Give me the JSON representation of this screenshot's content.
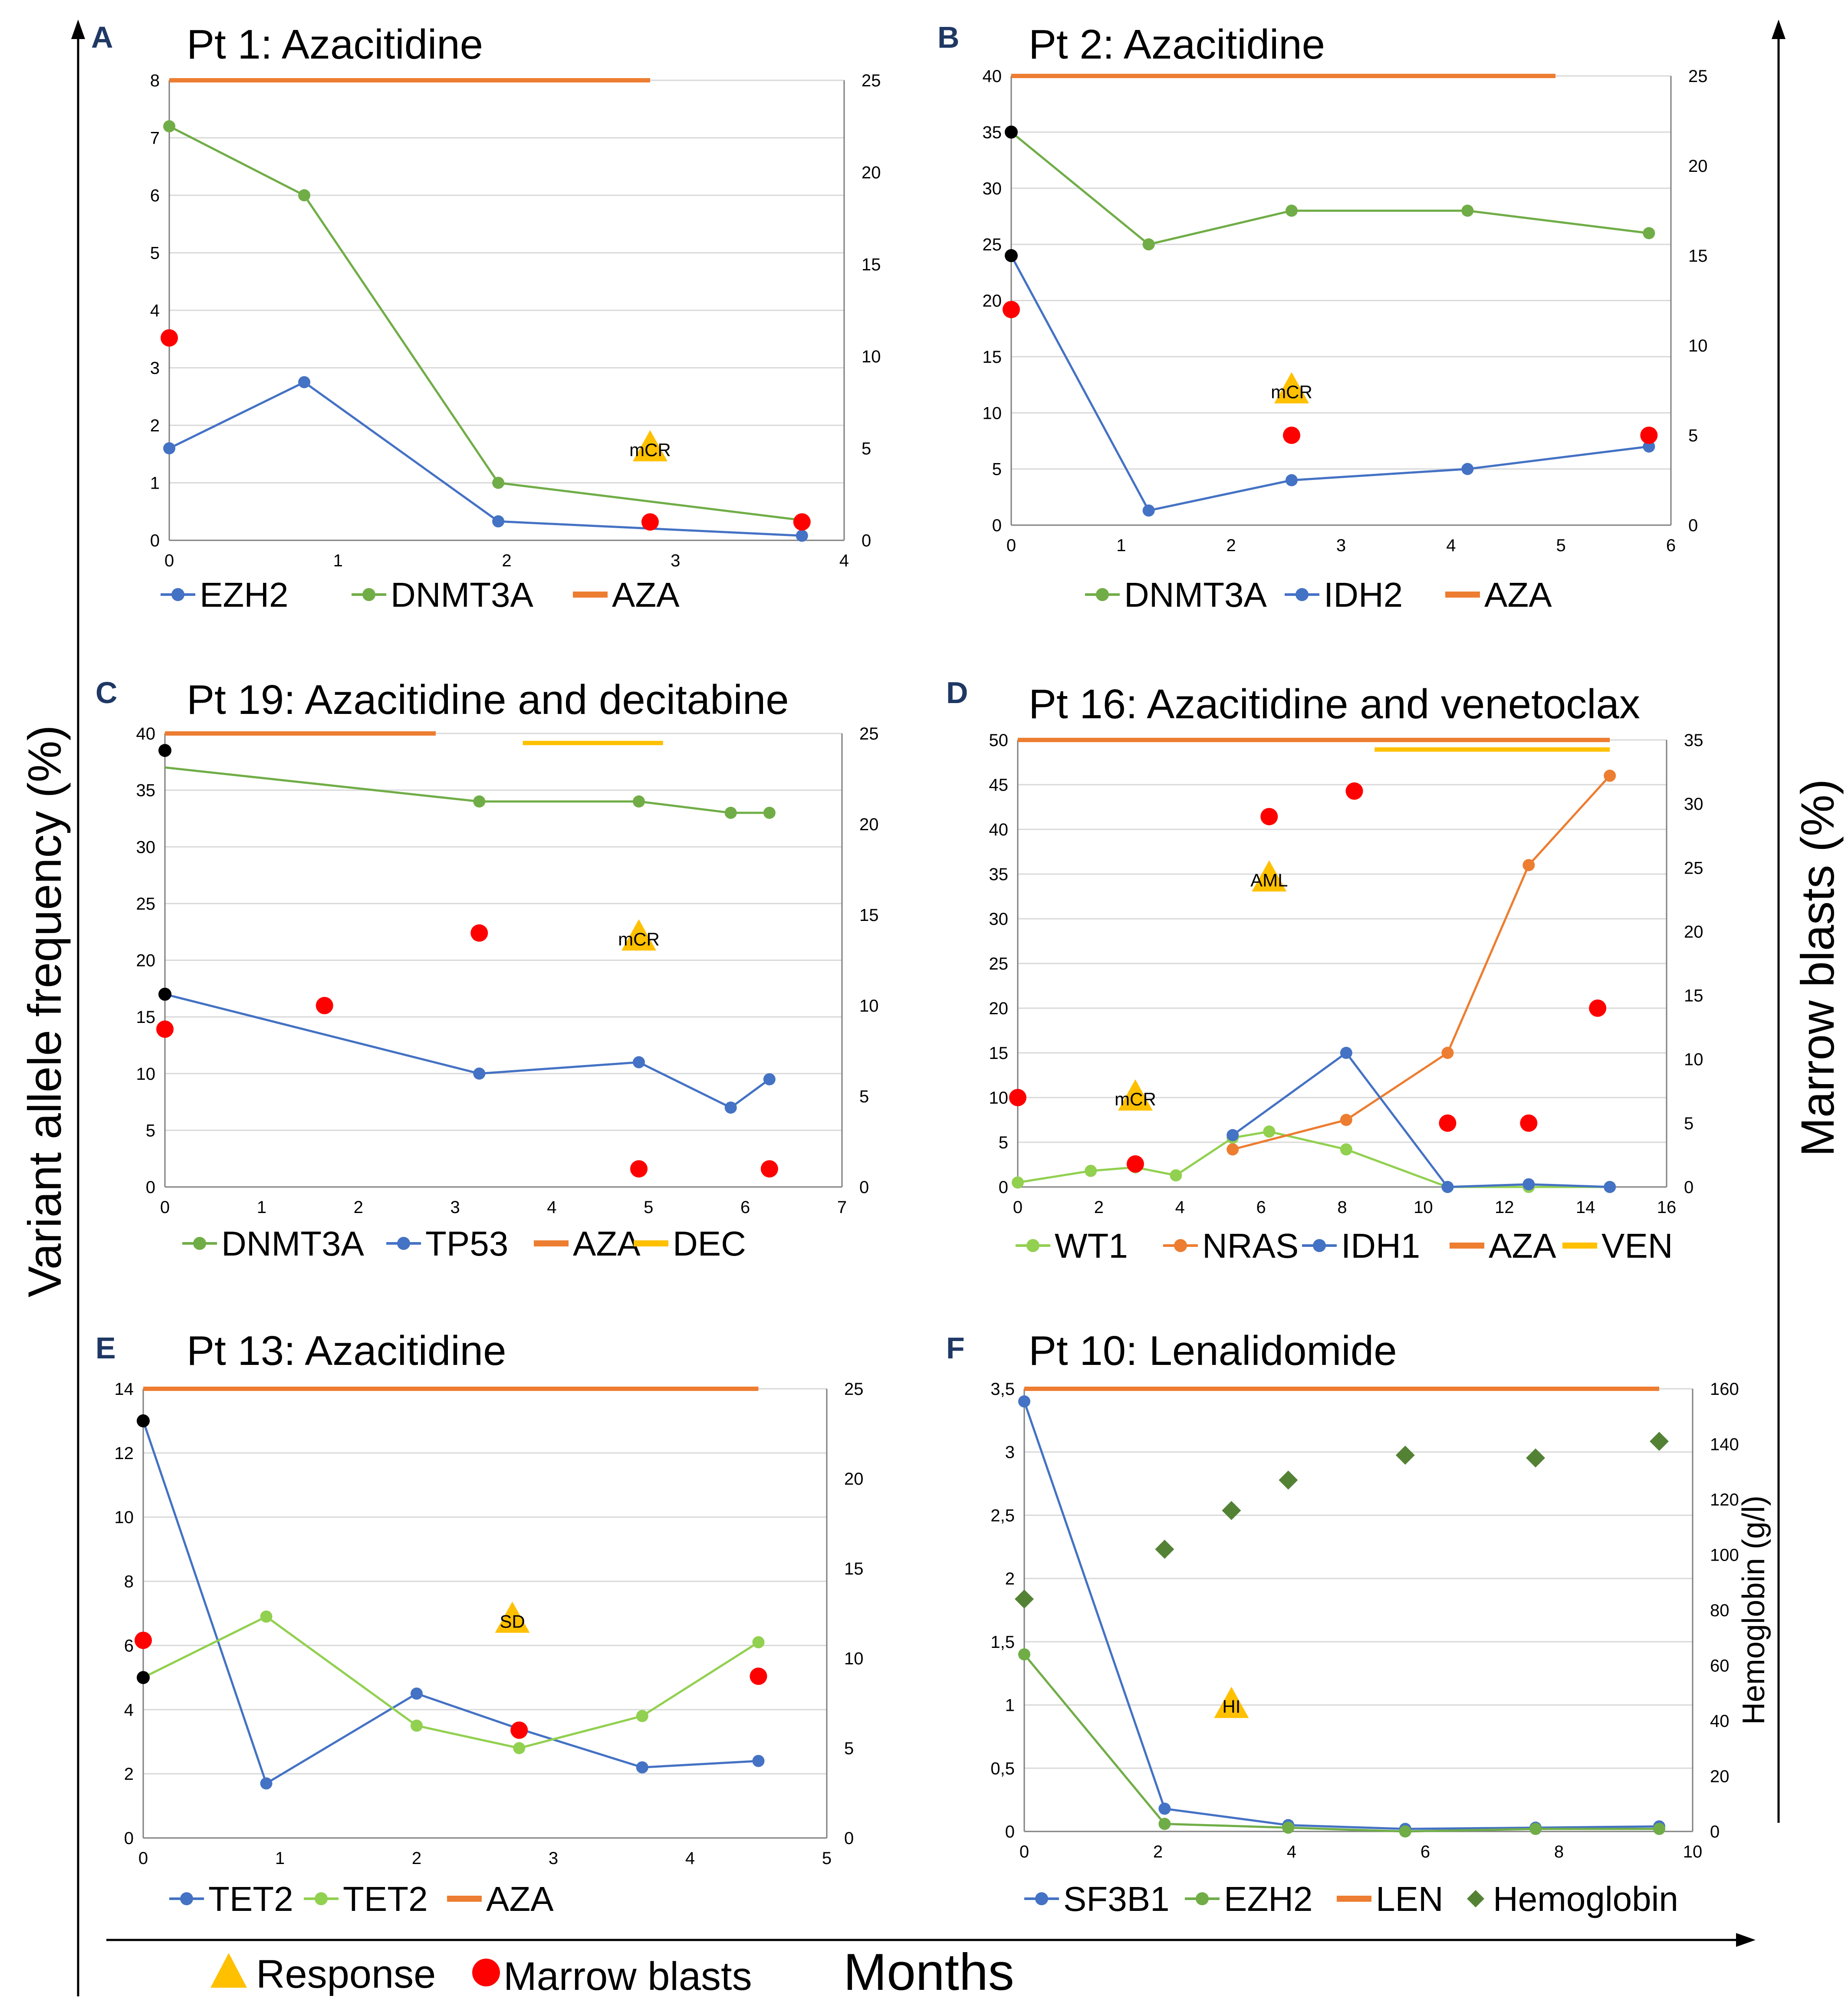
{
  "figure": {
    "left_axis_label": "Variant allele frequency (%)",
    "right_axis_label": "Marrow blasts (%)",
    "bottom_axis_label": "Months",
    "legend_response": "Response",
    "legend_blasts": "Marrow blasts",
    "colors": {
      "blue": "#4472c4",
      "green": "#70ad47",
      "lightgreen": "#92d050",
      "orange": "#ed7d31",
      "yellow": "#ffc000",
      "red": "#ff0000",
      "black": "#000000",
      "darkgreen": "#548235",
      "panel_letter": "#1f3864",
      "grid": "#d9d9d9",
      "axis": "#7f7f7f"
    }
  },
  "chart_data": [
    {
      "id": "A",
      "letter": "A",
      "type": "line",
      "title": "Pt 1: Azacitidine",
      "xlim": [
        0,
        4
      ],
      "xticks": [
        "0",
        "1",
        "2",
        "3",
        "4"
      ],
      "xtick_values": [
        0,
        1,
        2,
        3,
        4
      ],
      "ylim": [
        0,
        8
      ],
      "yticks": [
        "0",
        "1",
        "2",
        "3",
        "4",
        "5",
        "6",
        "7",
        "8"
      ],
      "ytick_values": [
        0,
        1,
        2,
        3,
        4,
        5,
        6,
        7,
        8
      ],
      "y2lim": [
        0,
        25
      ],
      "y2ticks": [
        "0",
        "5",
        "10",
        "15",
        "20",
        "25"
      ],
      "y2tick_values": [
        0,
        5,
        10,
        15,
        20,
        25
      ],
      "series": [
        {
          "name": "EZH2",
          "color": "blue",
          "x": [
            0,
            0.8,
            1.95,
            3.75
          ],
          "y": [
            1.6,
            2.75,
            0.33,
            0.08
          ]
        },
        {
          "name": "DNMT3A",
          "color": "green",
          "x": [
            0,
            0.8,
            1.95,
            3.75
          ],
          "y": [
            7.2,
            6.0,
            1.0,
            0.35
          ]
        }
      ],
      "treatments": [
        {
          "name": "AZA",
          "color": "orange",
          "x_start": 0,
          "x_end": 2.85
        }
      ],
      "blasts": [
        {
          "x": 0,
          "y": 11
        },
        {
          "x": 2.85,
          "y": 1
        },
        {
          "x": 3.75,
          "y": 1
        }
      ],
      "black_points": [],
      "responses": [
        {
          "label": "mCR",
          "x": 2.85,
          "y": 1.6
        }
      ],
      "legend": [
        {
          "label": "EZH2",
          "kind": "line-marker",
          "color": "blue"
        },
        {
          "label": "DNMT3A",
          "kind": "line-marker",
          "color": "green"
        },
        {
          "label": "AZA",
          "kind": "thick-line",
          "color": "orange"
        }
      ]
    },
    {
      "id": "B",
      "letter": "B",
      "type": "line",
      "title": "Pt 2: Azacitidine",
      "xlim": [
        0,
        6
      ],
      "xticks": [
        "0",
        "1",
        "2",
        "3",
        "4",
        "5",
        "6"
      ],
      "xtick_values": [
        0,
        1,
        2,
        3,
        4,
        5,
        6
      ],
      "ylim": [
        0,
        40
      ],
      "yticks": [
        "0",
        "5",
        "10",
        "15",
        "20",
        "25",
        "30",
        "35",
        "40"
      ],
      "ytick_values": [
        0,
        5,
        10,
        15,
        20,
        25,
        30,
        35,
        40
      ],
      "y2lim": [
        0,
        25
      ],
      "y2ticks": [
        "0",
        "5",
        "10",
        "15",
        "20",
        "25"
      ],
      "y2tick_values": [
        0,
        5,
        10,
        15,
        20,
        25
      ],
      "series": [
        {
          "name": "DNMT3A",
          "color": "green",
          "x": [
            0,
            1.25,
            2.55,
            4.15,
            5.8
          ],
          "y": [
            35,
            25,
            28,
            28,
            26
          ]
        },
        {
          "name": "IDH2",
          "color": "blue",
          "x": [
            0,
            1.25,
            2.55,
            4.15,
            5.8
          ],
          "y": [
            24,
            1.3,
            4.0,
            5.0,
            7.0
          ]
        }
      ],
      "treatments": [
        {
          "name": "AZA",
          "color": "orange",
          "x_start": 0,
          "x_end": 4.95
        }
      ],
      "blasts": [
        {
          "x": 0,
          "y": 12
        },
        {
          "x": 2.55,
          "y": 5
        },
        {
          "x": 5.8,
          "y": 5
        }
      ],
      "black_points": [
        {
          "x": 0,
          "y": 35
        },
        {
          "x": 0,
          "y": 24
        }
      ],
      "responses": [
        {
          "label": "mCR",
          "x": 2.55,
          "y": 12
        }
      ],
      "legend": [
        {
          "label": "DNMT3A",
          "kind": "line-marker",
          "color": "green"
        },
        {
          "label": "IDH2",
          "kind": "line-marker",
          "color": "blue"
        },
        {
          "label": "AZA",
          "kind": "thick-line",
          "color": "orange"
        }
      ]
    },
    {
      "id": "C",
      "letter": "C",
      "type": "line",
      "title": "Pt 19: Azacitidine and decitabine",
      "xlim": [
        0,
        7
      ],
      "xticks": [
        "0",
        "1",
        "2",
        "3",
        "4",
        "5",
        "6",
        "7"
      ],
      "xtick_values": [
        0,
        1,
        2,
        3,
        4,
        5,
        6,
        7
      ],
      "ylim": [
        0,
        40
      ],
      "yticks": [
        "0",
        "5",
        "10",
        "15",
        "20",
        "25",
        "30",
        "35",
        "40"
      ],
      "ytick_values": [
        0,
        5,
        10,
        15,
        20,
        25,
        30,
        35,
        40
      ],
      "y2lim": [
        0,
        25
      ],
      "y2ticks": [
        "0",
        "5",
        "10",
        "15",
        "20",
        "25"
      ],
      "y2tick_values": [
        0,
        5,
        10,
        15,
        20,
        25
      ],
      "series": [
        {
          "name": "DNMT3A",
          "color": "green",
          "x": [
            0,
            3.25,
            4.9,
            5.85,
            6.25
          ],
          "y": [
            37,
            34,
            34,
            33,
            33
          ],
          "first_marker": false
        },
        {
          "name": "TP53",
          "color": "blue",
          "x": [
            0,
            3.25,
            4.9,
            5.85,
            6.25
          ],
          "y": [
            17,
            10,
            11,
            7,
            9.5
          ],
          "first_marker": false
        }
      ],
      "treatments": [
        {
          "name": "AZA",
          "color": "orange",
          "x_start": 0,
          "x_end": 2.8
        },
        {
          "name": "DEC",
          "color": "yellow",
          "x_start": 3.7,
          "x_end": 5.15
        }
      ],
      "blasts": [
        {
          "x": 0,
          "y": 8.7
        },
        {
          "x": 1.65,
          "y": 10
        },
        {
          "x": 3.25,
          "y": 14
        },
        {
          "x": 4.9,
          "y": 1
        },
        {
          "x": 6.25,
          "y": 1
        }
      ],
      "black_points": [
        {
          "x": 0,
          "y": 38.5
        },
        {
          "x": 0,
          "y": 17
        }
      ],
      "responses": [
        {
          "label": "mCR",
          "x": 4.9,
          "y": 22
        }
      ],
      "legend": [
        {
          "label": "DNMT3A",
          "kind": "line-marker",
          "color": "green"
        },
        {
          "label": "TP53",
          "kind": "line-marker",
          "color": "blue"
        },
        {
          "label": "AZA",
          "kind": "thick-line",
          "color": "orange"
        },
        {
          "label": "DEC",
          "kind": "thick-line",
          "color": "yellow"
        }
      ]
    },
    {
      "id": "D",
      "letter": "D",
      "type": "line",
      "title": "Pt 16: Azacitidine and venetoclax",
      "xlim": [
        0,
        16
      ],
      "xticks": [
        "0",
        "2",
        "4",
        "6",
        "8",
        "10",
        "12",
        "14",
        "16"
      ],
      "xtick_values": [
        0,
        2,
        4,
        6,
        8,
        10,
        12,
        14,
        16
      ],
      "ylim": [
        0,
        50
      ],
      "yticks": [
        "0",
        "5",
        "10",
        "15",
        "20",
        "25",
        "30",
        "35",
        "40",
        "45",
        "50"
      ],
      "ytick_values": [
        0,
        5,
        10,
        15,
        20,
        25,
        30,
        35,
        40,
        45,
        50
      ],
      "y2lim": [
        0,
        35
      ],
      "y2ticks": [
        "0",
        "5",
        "10",
        "15",
        "20",
        "25",
        "30",
        "35"
      ],
      "y2tick_values": [
        0,
        5,
        10,
        15,
        20,
        25,
        30,
        35
      ],
      "series": [
        {
          "name": "WT1",
          "color": "lightgreen",
          "x": [
            0,
            1.8,
            2.9,
            3.9,
            5.3,
            6.2,
            8.1,
            10.6,
            12.6,
            14.6
          ],
          "y": [
            0.5,
            1.8,
            2.2,
            1.3,
            5.5,
            6.2,
            4.2,
            0,
            0,
            0
          ]
        },
        {
          "name": "NRAS",
          "color": "orange",
          "x": [
            5.3,
            8.1,
            10.6,
            12.6,
            14.6
          ],
          "y": [
            4.2,
            7.5,
            15,
            36,
            46
          ]
        },
        {
          "name": "IDH1",
          "color": "blue",
          "x": [
            5.3,
            8.1,
            10.6,
            12.6,
            14.6
          ],
          "y": [
            5.8,
            15,
            0,
            0.3,
            0
          ]
        }
      ],
      "treatments": [
        {
          "name": "AZA",
          "color": "orange",
          "x_start": 0,
          "x_end": 14.6
        },
        {
          "name": "VEN",
          "color": "yellow",
          "x_start": 8.8,
          "x_end": 14.6
        }
      ],
      "blasts": [
        {
          "x": 0,
          "y": 7
        },
        {
          "x": 2.9,
          "y": 1.8
        },
        {
          "x": 6.2,
          "y": 29
        },
        {
          "x": 8.3,
          "y": 31
        },
        {
          "x": 10.6,
          "y": 5
        },
        {
          "x": 12.6,
          "y": 5
        },
        {
          "x": 14.3,
          "y": 14
        }
      ],
      "black_points": [],
      "responses": [
        {
          "label": "mCR",
          "x": 2.9,
          "y": 10
        },
        {
          "label": "AML",
          "x": 6.2,
          "y": 34.5
        }
      ],
      "legend": [
        {
          "label": "WT1",
          "kind": "line-marker",
          "color": "lightgreen"
        },
        {
          "label": "NRAS",
          "kind": "line-marker",
          "color": "orange"
        },
        {
          "label": "IDH1",
          "kind": "line-marker",
          "color": "blue"
        },
        {
          "label": "AZA",
          "kind": "thick-line",
          "color": "orange"
        },
        {
          "label": "VEN",
          "kind": "thick-line",
          "color": "yellow"
        }
      ]
    },
    {
      "id": "E",
      "letter": "E",
      "type": "line",
      "title": "Pt 13: Azacitidine",
      "xlim": [
        0,
        5
      ],
      "xticks": [
        "0",
        "1",
        "2",
        "3",
        "4",
        "5"
      ],
      "xtick_values": [
        0,
        1,
        2,
        3,
        4,
        5
      ],
      "ylim": [
        0,
        14
      ],
      "yticks": [
        "0",
        "2",
        "4",
        "6",
        "8",
        "10",
        "12",
        "14"
      ],
      "ytick_values": [
        0,
        2,
        4,
        6,
        8,
        10,
        12,
        14
      ],
      "y2lim": [
        0,
        25
      ],
      "y2ticks": [
        "0",
        "5",
        "10",
        "15",
        "20",
        "25"
      ],
      "y2tick_values": [
        0,
        5,
        10,
        15,
        20,
        25
      ],
      "series": [
        {
          "name": "TET2",
          "color": "blue",
          "x": [
            0,
            0.9,
            2.0,
            2.75,
            3.65,
            4.5
          ],
          "y": [
            13,
            1.7,
            4.5,
            3.4,
            2.2,
            2.4
          ]
        },
        {
          "name": "TET2",
          "color": "lightgreen",
          "x": [
            0,
            0.9,
            2.0,
            2.75,
            3.65,
            4.5
          ],
          "y": [
            5,
            6.9,
            3.5,
            2.8,
            3.8,
            6.1
          ]
        }
      ],
      "treatments": [
        {
          "name": "AZA",
          "color": "orange",
          "x_start": 0,
          "x_end": 4.5
        }
      ],
      "blasts": [
        {
          "x": 0,
          "y": 11
        },
        {
          "x": 2.75,
          "y": 6
        },
        {
          "x": 4.5,
          "y": 9
        }
      ],
      "black_points": [
        {
          "x": 0,
          "y": 13
        },
        {
          "x": 0,
          "y": 5
        }
      ],
      "responses": [
        {
          "label": "SD",
          "x": 2.7,
          "y": 6.8
        }
      ],
      "legend": [
        {
          "label": "TET2",
          "kind": "line-marker",
          "color": "blue"
        },
        {
          "label": "TET2",
          "kind": "line-marker",
          "color": "lightgreen"
        },
        {
          "label": "AZA",
          "kind": "thick-line",
          "color": "orange"
        }
      ]
    },
    {
      "id": "F",
      "letter": "F",
      "type": "line",
      "title": "Pt 10: Lenalidomide",
      "xlim": [
        0,
        10
      ],
      "xticks": [
        "0",
        "2",
        "4",
        "6",
        "8",
        "10"
      ],
      "xtick_values": [
        0,
        2,
        4,
        6,
        8,
        10
      ],
      "ylim": [
        0,
        3.5
      ],
      "yticks": [
        "0",
        "0,5",
        "1",
        "1,5",
        "2",
        "2,5",
        "3",
        "3,5"
      ],
      "ytick_values": [
        0,
        0.5,
        1,
        1.5,
        2,
        2.5,
        3,
        3.5
      ],
      "y2lim": [
        0,
        160
      ],
      "y2ticks": [
        "0",
        "20",
        "40",
        "60",
        "80",
        "100",
        "120",
        "140",
        "160"
      ],
      "y2tick_values": [
        0,
        20,
        40,
        60,
        80,
        100,
        120,
        140,
        160
      ],
      "y2label": "Hemoglobin (g/l)",
      "series": [
        {
          "name": "SF3B1",
          "color": "blue",
          "x": [
            0,
            2.1,
            3.95,
            5.7,
            7.65,
            9.5
          ],
          "y": [
            3.4,
            0.18,
            0.05,
            0.02,
            0.03,
            0.04
          ]
        },
        {
          "name": "EZH2",
          "color": "green",
          "x": [
            0,
            2.1,
            3.95,
            5.7,
            7.65,
            9.5
          ],
          "y": [
            1.4,
            0.06,
            0.03,
            0.0,
            0.02,
            0.02
          ]
        }
      ],
      "treatments": [
        {
          "name": "LEN",
          "color": "orange",
          "x_start": 0,
          "x_end": 9.5
        }
      ],
      "hemoglobin": {
        "x": [
          0,
          2.1,
          3.1,
          3.95,
          5.7,
          7.65,
          9.5
        ],
        "y": [
          84,
          102,
          116,
          127,
          136,
          135,
          141
        ]
      },
      "blasts": [],
      "black_points": [],
      "responses": [
        {
          "label": "HI",
          "x": 3.1,
          "y": 1.0
        }
      ],
      "legend": [
        {
          "label": "SF3B1",
          "kind": "line-marker",
          "color": "blue"
        },
        {
          "label": "EZH2",
          "kind": "line-marker",
          "color": "green"
        },
        {
          "label": "LEN",
          "kind": "thick-line",
          "color": "orange"
        },
        {
          "label": "Hemoglobin",
          "kind": "diamond",
          "color": "darkgreen"
        }
      ]
    }
  ]
}
